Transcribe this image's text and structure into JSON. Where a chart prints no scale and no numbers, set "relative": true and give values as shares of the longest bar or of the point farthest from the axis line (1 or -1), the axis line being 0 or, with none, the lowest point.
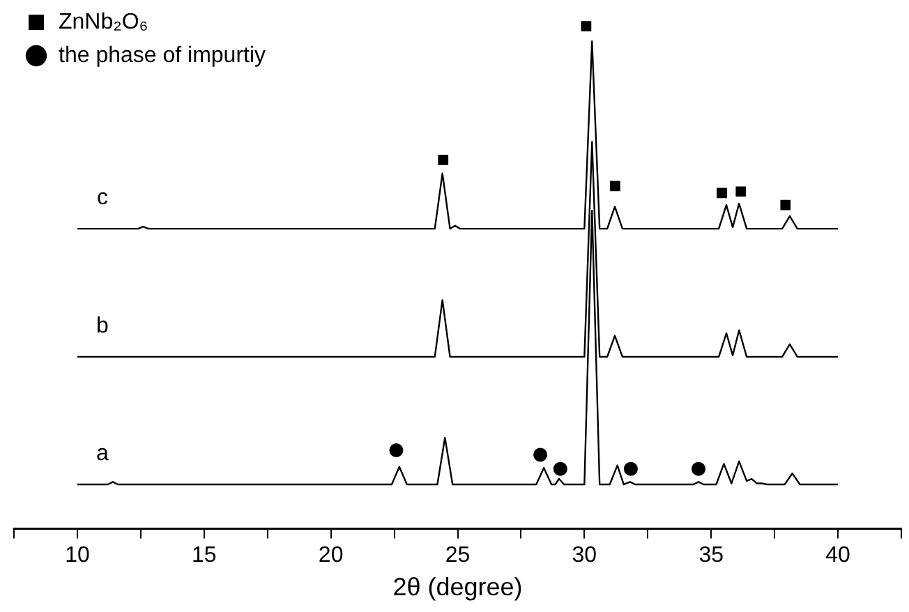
{
  "chart_data": {
    "type": "line",
    "relative": true,
    "xlabel": "2θ (degree)",
    "xlim": [
      7.5,
      42.5
    ],
    "xticks": [
      {
        "value": 7.5,
        "label": null
      },
      10,
      {
        "value": 12.5,
        "label": null
      },
      15,
      {
        "value": 17.5,
        "label": null
      },
      20,
      {
        "value": 22.5,
        "label": null
      },
      25,
      {
        "value": 27.5,
        "label": null
      },
      30,
      {
        "value": 32.5,
        "label": null
      },
      35,
      {
        "value": 37.5,
        "label": null
      },
      40,
      {
        "value": 42.5,
        "label": null
      }
    ],
    "tick_labels": "x",
    "grid": false,
    "legend": "top left",
    "line_style": "solid",
    "series": [
      {
        "marker": "none",
        "color": "#000000",
        "x": [
          10,
          11.2,
          11.4,
          11.6,
          22.4,
          22.7,
          23.0,
          24.2,
          24.5,
          24.8,
          28.1,
          28.4,
          28.7,
          28.85,
          29.0,
          29.2,
          30.0,
          30.3,
          30.6,
          31.0,
          31.3,
          31.55,
          31.8,
          32.0,
          34.3,
          34.5,
          34.7,
          35.2,
          35.5,
          35.8,
          36.1,
          36.4,
          36.6,
          36.8,
          37.0,
          37.2,
          37.9,
          38.2,
          38.5,
          40
        ],
        "values": [
          0.088,
          0.088,
          0.093,
          0.088,
          0.088,
          0.123,
          0.088,
          0.088,
          0.181,
          0.088,
          0.088,
          0.121,
          0.088,
          0.088,
          0.099,
          0.088,
          0.088,
          0.633,
          0.088,
          0.088,
          0.126,
          0.088,
          0.093,
          0.088,
          0.088,
          0.093,
          0.088,
          0.088,
          0.129,
          0.09,
          0.134,
          0.095,
          0.099,
          0.09,
          0.09,
          0.088,
          0.088,
          0.11,
          0.088,
          0.088
        ]
      },
      {
        "marker": "none",
        "color": "#000000",
        "x": [
          10,
          24.1,
          24.4,
          24.7,
          30.0,
          30.3,
          30.6,
          30.9,
          31.2,
          31.5,
          35.3,
          35.6,
          35.85,
          36.1,
          36.4,
          37.8,
          38.1,
          38.4,
          40
        ],
        "values": [
          0.342,
          0.342,
          0.455,
          0.342,
          0.342,
          0.77,
          0.342,
          0.342,
          0.384,
          0.342,
          0.342,
          0.389,
          0.345,
          0.395,
          0.342,
          0.342,
          0.367,
          0.342,
          0.342
        ]
      },
      {
        "marker": "none",
        "color": "#000000",
        "x": [
          10,
          12.4,
          12.6,
          12.8,
          24.1,
          24.4,
          24.7,
          24.9,
          25.1,
          30.0,
          30.3,
          30.6,
          30.9,
          31.2,
          31.5,
          35.3,
          35.6,
          35.85,
          36.1,
          36.4,
          37.8,
          38.1,
          38.4,
          40
        ],
        "values": [
          0.597,
          0.597,
          0.601,
          0.597,
          0.597,
          0.707,
          0.597,
          0.603,
          0.597,
          0.597,
          0.97,
          0.597,
          0.597,
          0.641,
          0.597,
          0.597,
          0.644,
          0.6,
          0.647,
          0.597,
          0.597,
          0.622,
          0.597,
          0.597
        ]
      },
      {
        "type": "scatter",
        "name": "ZnNb₂O₆",
        "marker": "square",
        "color": "#000000",
        "x": [
          24.43,
          30.07,
          31.21,
          35.42,
          36.17,
          37.93
        ],
        "values": [
          0.734,
          1.0,
          0.682,
          0.668,
          0.671,
          0.644
        ]
      },
      {
        "type": "scatter",
        "name": "the phase of impurtiy",
        "marker": "circle",
        "color": "#000000",
        "x": [
          22.58,
          28.26,
          29.05,
          31.83,
          34.5
        ],
        "values": [
          0.156,
          0.147,
          0.119,
          0.119,
          0.119
        ]
      }
    ],
    "annotations": [
      "a",
      "b",
      "c"
    ]
  }
}
